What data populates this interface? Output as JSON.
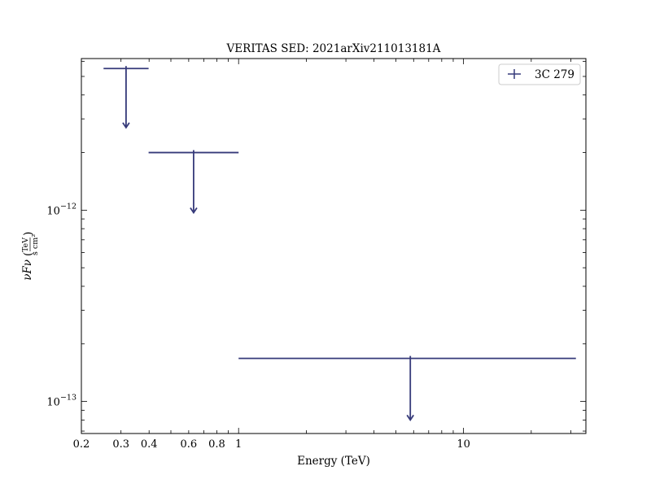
{
  "chart_data": {
    "type": "scatter",
    "title": "VERITAS SED: 2021arXiv211013181A",
    "xlabel": "Energy (TeV)",
    "ylabel_main": "νFν",
    "ylabel_num": "TeV",
    "ylabel_den": "s cm²",
    "xscale": "log",
    "yscale": "log",
    "xlim": [
      0.2,
      35
    ],
    "ylim": [
      6.8e-14,
      6.2e-12
    ],
    "x_ticks": [
      {
        "value": 0.2,
        "label": "0.2"
      },
      {
        "value": 0.3,
        "label": "0.3"
      },
      {
        "value": 0.4,
        "label": "0.4"
      },
      {
        "value": 0.6,
        "label": "0.6"
      },
      {
        "value": 0.8,
        "label": "0.8"
      },
      {
        "value": 1,
        "label": "1"
      },
      {
        "value": 10,
        "label": "10"
      }
    ],
    "y_ticks": [
      {
        "value": 1e-13,
        "label_base": "10",
        "label_exp": "−13"
      },
      {
        "value": 1e-12,
        "label_base": "10",
        "label_exp": "−12"
      }
    ],
    "legend": {
      "position": "top-right"
    },
    "color": "#363a7a",
    "series": [
      {
        "name": "3C 279",
        "upper_limits": true,
        "points": [
          {
            "x": 0.316,
            "x_low": 0.251,
            "x_high": 0.398,
            "y": 5.5e-12,
            "y_arrow_to": 2.7e-12
          },
          {
            "x": 0.631,
            "x_low": 0.398,
            "x_high": 1.0,
            "y": 2e-12,
            "y_arrow_to": 9.7e-13
          },
          {
            "x": 5.8,
            "x_low": 1.0,
            "x_high": 31.6,
            "y": 1.68e-13,
            "y_arrow_to": 8e-14
          }
        ]
      }
    ]
  }
}
